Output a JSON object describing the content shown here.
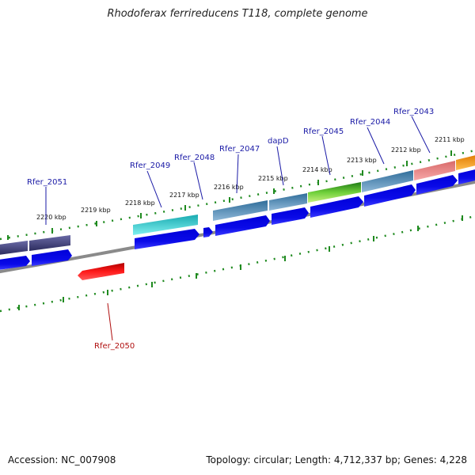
{
  "title": "Rhodoferax ferrireducens T118, complete genome",
  "footer": {
    "accession": "Accession: NC_007908",
    "topology": "Topology: circular; Length: 4,712,337 bp; Genes: 4,228"
  },
  "colors": {
    "cds_blue": "#1010e0",
    "backbone": "#8a8a8a",
    "tick": "#1f8a1f",
    "label_blue": "#1a1aa6",
    "label_red": "#b01010",
    "reverse_red": "#e01010"
  },
  "scale_labels": [
    "2220 kbp",
    "2219 kbp",
    "2218 kbp",
    "2217 kbp",
    "2216 kbp",
    "2215 kbp",
    "2214 kbp",
    "2213 kbp",
    "2212 kbp",
    "2211 kbp"
  ],
  "genes": [
    {
      "name": "Rfer_2051",
      "strand": "forward",
      "color": "#3d3d7a"
    },
    {
      "name": "Rfer_2049",
      "strand": "forward",
      "color": "#22c6cc"
    },
    {
      "name": "Rfer_2048",
      "strand": "forward",
      "color": "#1010e0"
    },
    {
      "name": "Rfer_2047",
      "strand": "forward",
      "color": "#4f86b5"
    },
    {
      "name": "dapD",
      "strand": "forward",
      "color": "#4f86b5"
    },
    {
      "name": "Rfer_2045",
      "strand": "forward",
      "color": "#3ea826"
    },
    {
      "name": "Rfer_2044",
      "strand": "forward",
      "color": "#4f86b5"
    },
    {
      "name": "Rfer_2043",
      "strand": "forward",
      "color": "#f08a8a"
    },
    {
      "name": "Rfer_2050",
      "strand": "reverse",
      "color": "#e01010"
    }
  ]
}
